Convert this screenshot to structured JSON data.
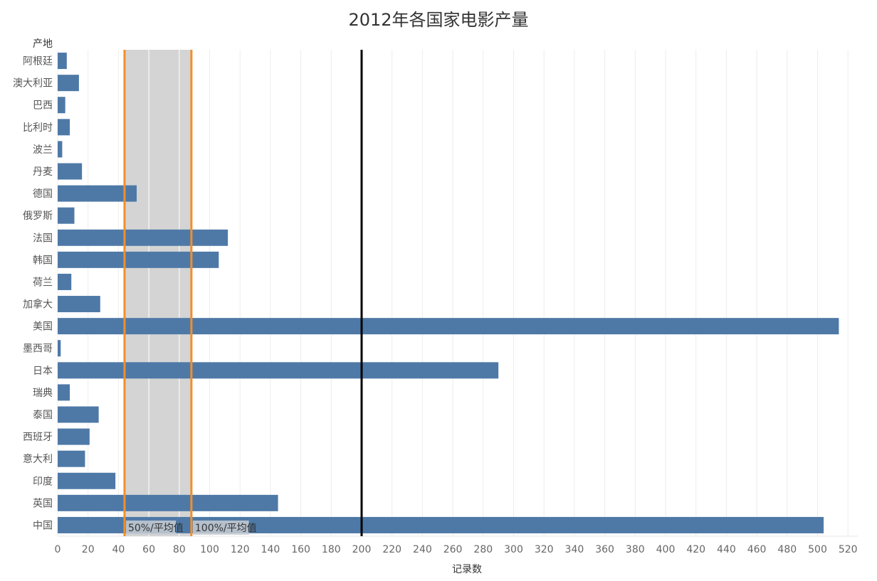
{
  "chart_data": {
    "type": "bar",
    "orientation": "horizontal",
    "title": "2012年各国家电影产量",
    "y_header": "产地",
    "xlabel": "记录数",
    "categories": [
      "阿根廷",
      "澳大利亚",
      "巴西",
      "比利时",
      "波兰",
      "丹麦",
      "德国",
      "俄罗斯",
      "法国",
      "韩国",
      "荷兰",
      "加拿大",
      "美国",
      "墨西哥",
      "日本",
      "瑞典",
      "泰国",
      "西班牙",
      "意大利",
      "印度",
      "英国",
      "中国"
    ],
    "values": [
      6,
      14,
      5,
      8,
      3,
      16,
      52,
      11,
      112,
      106,
      9,
      28,
      514,
      2,
      290,
      8,
      27,
      21,
      18,
      38,
      145,
      504
    ],
    "xlim": [
      0,
      525
    ],
    "xticks": [
      0,
      20,
      40,
      60,
      80,
      100,
      120,
      140,
      160,
      180,
      200,
      220,
      240,
      260,
      280,
      300,
      320,
      340,
      360,
      380,
      400,
      420,
      440,
      460,
      480,
      500,
      520
    ],
    "bar_color": "#4e79a7",
    "reference_band": {
      "from": 44,
      "to": 88,
      "color": "#d4d4d4"
    },
    "reference_lines": [
      {
        "value": 44,
        "label": "50%/平均值",
        "color": "#f28e2b"
      },
      {
        "value": 88,
        "label": "100%/平均值",
        "color": "#f28e2b"
      },
      {
        "value": 200,
        "label": "",
        "color": "#000000"
      }
    ],
    "grid": true
  }
}
